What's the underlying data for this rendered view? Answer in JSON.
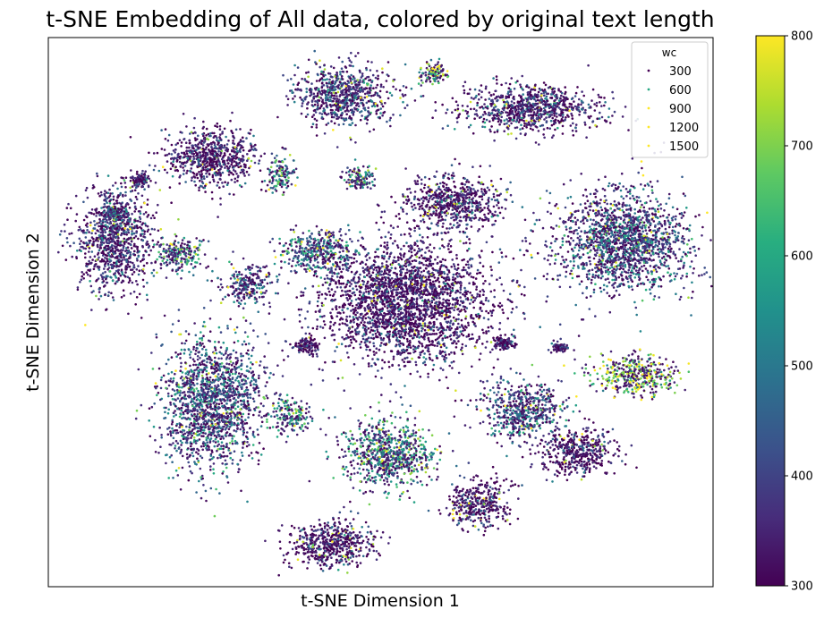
{
  "chart_data": {
    "type": "scatter",
    "title": "t-SNE Embedding of All data, colored by original text length",
    "xlabel": "t-SNE Dimension 1",
    "ylabel": "t-SNE Dimension 2",
    "xticks": [],
    "yticks": [],
    "xlim": [
      0,
      100
    ],
    "ylim": [
      0,
      100
    ],
    "grid": false,
    "legend": {
      "title": "wc",
      "placement": "top-right",
      "entries": [
        {
          "label": "300",
          "value": 300
        },
        {
          "label": "600",
          "value": 600
        },
        {
          "label": "900",
          "value": 900
        },
        {
          "label": "1200",
          "value": 1200
        },
        {
          "label": "1500",
          "value": 1500
        }
      ]
    },
    "colorbar": {
      "label": "",
      "colormap": "viridis",
      "range": [
        300,
        800
      ],
      "ticks": [
        300,
        400,
        500,
        600,
        700,
        800
      ]
    },
    "clusters": [
      {
        "center": [
          44.5,
          89.5
        ],
        "spread": [
          6.0,
          4.5
        ],
        "color_value": 420
      },
      {
        "center": [
          58.0,
          93.5
        ],
        "spread": [
          1.7,
          1.6
        ],
        "color_value": 650
      },
      {
        "center": [
          72.5,
          87.0
        ],
        "spread": [
          8.5,
          3.5
        ],
        "color_value": 380
      },
      {
        "center": [
          24.5,
          78.0
        ],
        "spread": [
          6.0,
          4.2
        ],
        "color_value": 350
      },
      {
        "center": [
          35.0,
          75.0
        ],
        "spread": [
          1.8,
          2.5
        ],
        "color_value": 560
      },
      {
        "center": [
          14.0,
          74.0
        ],
        "spread": [
          1.0,
          0.9
        ],
        "color_value": 360
      },
      {
        "center": [
          47.0,
          74.5
        ],
        "spread": [
          2.0,
          1.8
        ],
        "color_value": 600
      },
      {
        "center": [
          61.0,
          70.0
        ],
        "spread": [
          6.0,
          3.8
        ],
        "color_value": 360
      },
      {
        "center": [
          86.5,
          63.0
        ],
        "spread": [
          8.0,
          7.5
        ],
        "color_value": 460
      },
      {
        "center": [
          10.0,
          63.0
        ],
        "spread": [
          4.5,
          7.5
        ],
        "color_value": 380
      },
      {
        "center": [
          20.0,
          60.5
        ],
        "spread": [
          3.0,
          2.5
        ],
        "color_value": 560
      },
      {
        "center": [
          10.0,
          68.0
        ],
        "spread": [
          1.6,
          1.2
        ],
        "color_value": 470
      },
      {
        "center": [
          30.0,
          55.0
        ],
        "spread": [
          3.0,
          2.8
        ],
        "color_value": 440
      },
      {
        "center": [
          40.5,
          61.0
        ],
        "spread": [
          4.5,
          3.0
        ],
        "color_value": 520
      },
      {
        "center": [
          54.0,
          52.0
        ],
        "spread": [
          10.0,
          9.0
        ],
        "color_value": 350
      },
      {
        "center": [
          88.5,
          38.5
        ],
        "spread": [
          5.0,
          3.0
        ],
        "color_value": 690
      },
      {
        "center": [
          24.5,
          33.5
        ],
        "spread": [
          6.0,
          9.5
        ],
        "color_value": 470
      },
      {
        "center": [
          36.5,
          31.0
        ],
        "spread": [
          2.5,
          2.5
        ],
        "color_value": 560
      },
      {
        "center": [
          51.0,
          24.0
        ],
        "spread": [
          5.5,
          5.0
        ],
        "color_value": 560
      },
      {
        "center": [
          71.5,
          32.0
        ],
        "spread": [
          5.0,
          4.0
        ],
        "color_value": 450
      },
      {
        "center": [
          79.5,
          24.5
        ],
        "spread": [
          4.5,
          3.5
        ],
        "color_value": 340
      },
      {
        "center": [
          64.8,
          15.0
        ],
        "spread": [
          3.8,
          3.5
        ],
        "color_value": 330
      },
      {
        "center": [
          42.5,
          7.5
        ],
        "spread": [
          5.5,
          3.5
        ],
        "color_value": 340
      },
      {
        "center": [
          38.8,
          44.0
        ],
        "spread": [
          1.5,
          1.1
        ],
        "color_value": 340
      },
      {
        "center": [
          68.5,
          44.5
        ],
        "spread": [
          1.2,
          1.0
        ],
        "color_value": 340
      },
      {
        "center": [
          77.0,
          43.5
        ],
        "spread": [
          0.8,
          0.6
        ],
        "color_value": 340
      }
    ]
  }
}
